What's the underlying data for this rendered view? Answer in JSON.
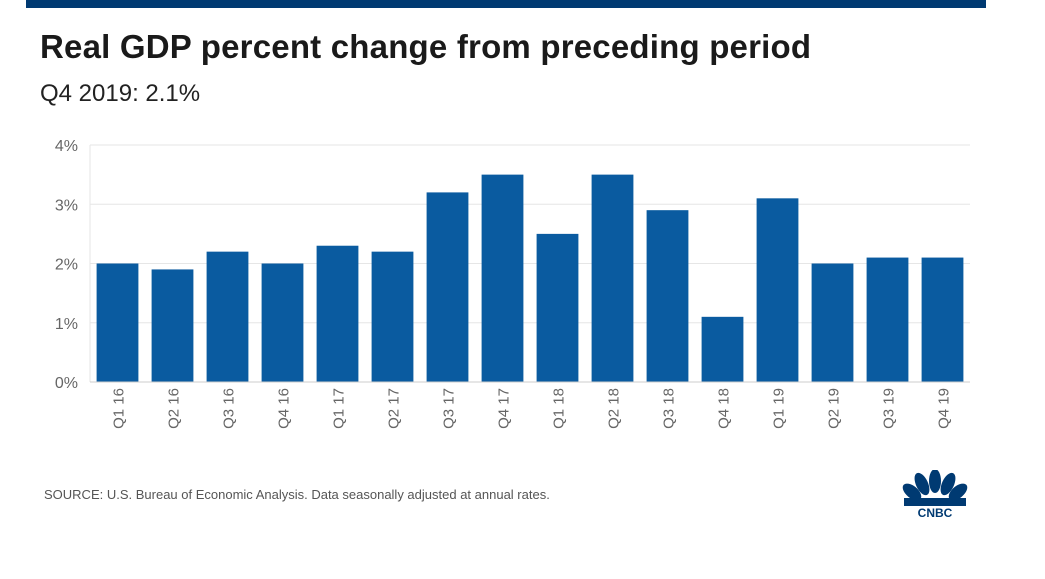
{
  "header": {
    "title": "Real GDP percent change from preceding period",
    "subtitle": "Q4 2019: 2.1%"
  },
  "footer": {
    "source": "SOURCE: U.S. Bureau of Economic Analysis. Data seasonally adjusted at annual rates.",
    "logo_text": "CNBC"
  },
  "colors": {
    "bar": "#0a5ba0",
    "accent_bar": "#003a72",
    "grid": "#e6e6e6",
    "axis_text": "#666666"
  },
  "chart_data": {
    "type": "bar",
    "categories": [
      "Q1 16",
      "Q2 16",
      "Q3 16",
      "Q4 16",
      "Q1 17",
      "Q2 17",
      "Q3 17",
      "Q4 17",
      "Q1 18",
      "Q2 18",
      "Q3 18",
      "Q4 18",
      "Q1 19",
      "Q2 19",
      "Q3 19",
      "Q4 19"
    ],
    "values": [
      2.0,
      1.9,
      2.2,
      2.0,
      2.3,
      2.2,
      3.2,
      3.5,
      2.5,
      3.5,
      2.9,
      1.1,
      3.1,
      2.0,
      2.1,
      2.1
    ],
    "ytick_labels": [
      "0%",
      "1%",
      "2%",
      "3%",
      "4%"
    ],
    "ytick_values": [
      0,
      1,
      2,
      3,
      4
    ],
    "ylim": [
      0,
      4
    ],
    "grid": true
  }
}
